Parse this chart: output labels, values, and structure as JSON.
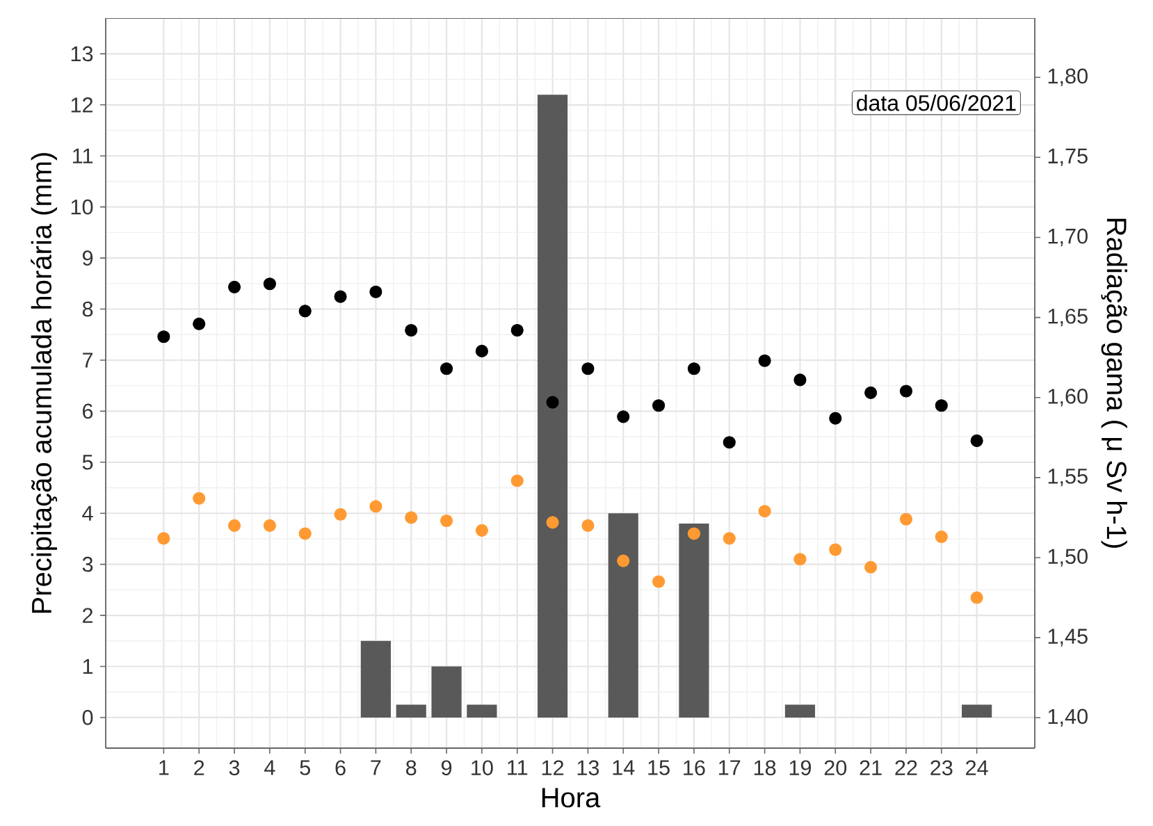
{
  "chart_data": {
    "type": "bar",
    "xlabel": "Hora",
    "ylabel": "Precipitação acumulada horária (mm)",
    "y2label": "Radiação gama ( μ Sv h-1)",
    "annotations": [
      "data 05/06/2021"
    ],
    "categories": [
      "1",
      "2",
      "3",
      "4",
      "5",
      "6",
      "7",
      "8",
      "9",
      "10",
      "11",
      "12",
      "13",
      "14",
      "15",
      "16",
      "17",
      "18",
      "19",
      "20",
      "21",
      "22",
      "23",
      "24"
    ],
    "series": [
      {
        "color": "#595959",
        "values": [
          0,
          0,
          0,
          0,
          0,
          0,
          1.5,
          0.25,
          1.0,
          0.25,
          0,
          12.2,
          0,
          4.0,
          0,
          3.8,
          0,
          0,
          0.25,
          0,
          0,
          0,
          0,
          0.25
        ]
      },
      {
        "type": "scatter",
        "axis": "y2",
        "color": "#000000",
        "values": [
          1.638,
          1.646,
          1.669,
          1.671,
          1.654,
          1.663,
          1.666,
          1.642,
          1.618,
          1.629,
          1.642,
          1.597,
          1.618,
          1.588,
          1.595,
          1.618,
          1.572,
          1.623,
          1.611,
          1.587,
          1.603,
          1.604,
          1.595,
          1.573
        ]
      },
      {
        "type": "scatter",
        "axis": "y2",
        "color": "#ff9a33",
        "values": [
          1.512,
          1.537,
          1.52,
          1.52,
          1.515,
          1.527,
          1.532,
          1.525,
          1.523,
          1.517,
          1.548,
          1.522,
          1.52,
          1.498,
          1.485,
          1.515,
          1.512,
          1.529,
          1.499,
          1.505,
          1.494,
          1.524,
          1.513,
          1.475
        ]
      }
    ],
    "ylim": [
      -0.6,
      13.7
    ],
    "yticks": [
      0,
      1,
      2,
      3,
      4,
      5,
      6,
      7,
      8,
      9,
      10,
      11,
      12,
      13
    ],
    "y2lim": [
      1.381,
      1.837
    ],
    "y2ticks": [
      {
        "value": 1.4,
        "label": "1,40"
      },
      {
        "value": 1.45,
        "label": "1,45"
      },
      {
        "value": 1.5,
        "label": "1,50"
      },
      {
        "value": 1.55,
        "label": "1,55"
      },
      {
        "value": 1.6,
        "label": "1,60"
      },
      {
        "value": 1.65,
        "label": "1,65"
      },
      {
        "value": 1.7,
        "label": "1,70"
      },
      {
        "value": 1.75,
        "label": "1,75"
      },
      {
        "value": 1.8,
        "label": "1,80"
      }
    ],
    "grid": true
  }
}
